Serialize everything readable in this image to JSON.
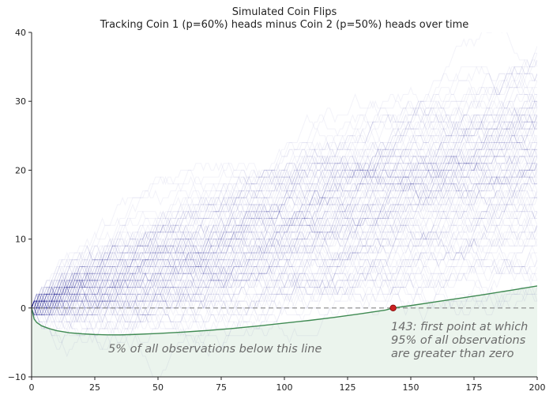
{
  "chart_data": {
    "type": "line",
    "title": "Simulated Coin Flips",
    "subtitle": "Tracking Coin 1 (p=60%) heads minus Coin 2 (p=50%) heads over time",
    "xlabel": "",
    "ylabel": "",
    "xlim": [
      0,
      200
    ],
    "ylim": [
      -10,
      40
    ],
    "x_ticks": [
      "0",
      "25",
      "50",
      "75",
      "100",
      "125",
      "150",
      "175",
      "200"
    ],
    "y_ticks": [
      "−10",
      "0",
      "10",
      "20",
      "30",
      "40"
    ],
    "grid": false,
    "simulation": {
      "paths": 120,
      "steps": 200,
      "p_coin1": 0.6,
      "p_coin2": 0.5,
      "path_color": "#00008b"
    },
    "reference_line": {
      "y": 0,
      "style": "dashed",
      "color": "#888888"
    },
    "percentile_curve": {
      "name": "5th percentile",
      "color": "#3f8a52",
      "x": [
        0,
        1,
        2,
        4,
        7,
        10,
        15,
        20,
        25,
        30,
        35,
        40,
        50,
        60,
        70,
        80,
        90,
        100,
        110,
        120,
        130,
        140,
        143,
        150,
        160,
        170,
        180,
        190,
        200
      ],
      "y": [
        0,
        -1.6,
        -2.1,
        -2.6,
        -3.0,
        -3.3,
        -3.6,
        -3.75,
        -3.85,
        -3.9,
        -3.9,
        -3.85,
        -3.7,
        -3.5,
        -3.25,
        -2.95,
        -2.6,
        -2.2,
        -1.8,
        -1.35,
        -0.85,
        -0.3,
        0,
        0.35,
        0.9,
        1.45,
        2.0,
        2.6,
        3.2
      ]
    },
    "marker": {
      "x": 143,
      "y": 0,
      "color": "#cc2222"
    },
    "shaded_region_color": "#e3f0e6",
    "annotations": {
      "below_line": "5% of all observations below this line",
      "marker_line1": "143: first point at which",
      "marker_line2": "95% of all observations",
      "marker_line3": "are greater than zero"
    }
  }
}
